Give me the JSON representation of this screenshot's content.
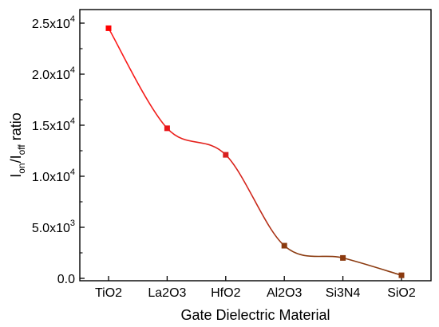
{
  "chart_data": {
    "type": "line",
    "xlabel": "Gate Dielectric Material",
    "ylabel": {
      "parts": [
        "I",
        "on",
        "/I",
        "off",
        " ratio"
      ]
    },
    "categories": [
      "TiO2",
      "La2O3",
      "HfO2",
      "Al2O3",
      "Si3N4",
      "SiO2"
    ],
    "values": [
      24500,
      14700,
      12100,
      3200,
      2000,
      300
    ],
    "ylim": [
      0,
      25000
    ],
    "yticks": [
      {
        "value": 0,
        "mantissa": "0.0",
        "exponent": ""
      },
      {
        "value": 5000,
        "mantissa": "5.0x10",
        "exponent": "3"
      },
      {
        "value": 10000,
        "mantissa": "1.0x10",
        "exponent": "4"
      },
      {
        "value": 15000,
        "mantissa": "1.5x10",
        "exponent": "4"
      },
      {
        "value": 20000,
        "mantissa": "2.0x10",
        "exponent": "4"
      },
      {
        "value": 25000,
        "mantissa": "2.5x10",
        "exponent": "4"
      }
    ],
    "grid": false,
    "legend": "none",
    "curve": "smooth",
    "colors": {
      "line_start": "#ff1a1a",
      "line_end": "#8b3a0f",
      "marker_start": "#ff0000",
      "marker_end": "#8b3a0f",
      "axis": "#000000"
    }
  }
}
